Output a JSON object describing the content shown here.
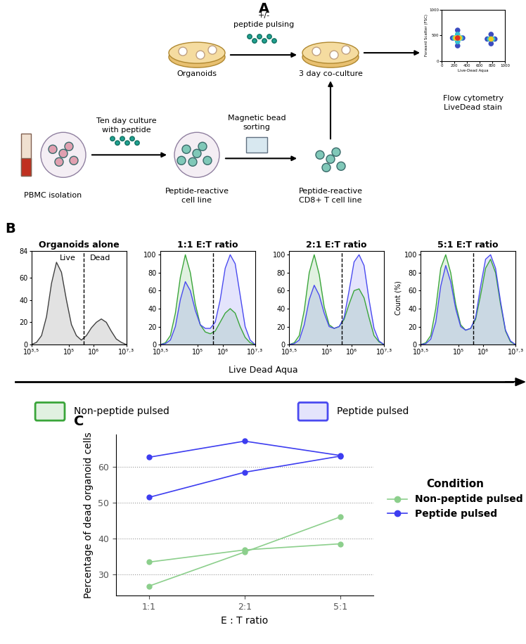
{
  "panel_labels": [
    "A",
    "B",
    "C"
  ],
  "diagram": {
    "texts": {
      "pulsing": [
        "+/-",
        "peptide pulsing"
      ],
      "organoids": [
        "Organoids"
      ],
      "coculture": [
        "3 day co-culture"
      ],
      "flow": [
        "Flow cytometry",
        "LiveDead stain"
      ],
      "culture": [
        "Ten day culture",
        "with peptide"
      ],
      "sorting": [
        "Magnetic bead",
        "sorting"
      ],
      "pbmc": [
        "PBMC isolation"
      ],
      "cell_line": [
        "Peptide-reactive",
        "cell line"
      ],
      "cd8_line": [
        "Peptide-reactive",
        "CD8+ T cell line"
      ]
    }
  },
  "panel_b": {
    "axis_title": "Live Dead Aqua",
    "legend": [
      {
        "name": "Non-peptide pulsed",
        "color": "#3aa53a"
      },
      {
        "name": "Peptide pulsed",
        "color": "#4a4af0"
      }
    ]
  },
  "chart_data": [
    {
      "type": "scatter",
      "x_label": "Live-Dead Aqua",
      "y_label": "Forward Scatter (FSC)",
      "xlim": [
        0,
        1000
      ],
      "ylim": [
        0,
        1000
      ],
      "xticks": [
        0,
        200,
        400,
        600,
        800,
        1000
      ],
      "yticks": [
        0,
        500,
        1000
      ],
      "series": [
        {
          "x": [
            250,
            170,
            330,
            250,
            250,
            200,
            300,
            250,
            250,
            220,
            280,
            250
          ],
          "y": [
            450,
            450,
            450,
            300,
            600,
            450,
            450,
            380,
            520,
            450,
            450,
            450
          ],
          "colors": [
            "#3b4cc0",
            "#3b4cc0",
            "#3b4cc0",
            "#3b4cc0",
            "#3b4cc0",
            "#35c0d0",
            "#35c0d0",
            "#35c0d0",
            "#35c0d0",
            "#f0d020",
            "#f0d020",
            "#e03020"
          ]
        },
        {
          "x": [
            780,
            720,
            840,
            780,
            780,
            755,
            805,
            780
          ],
          "y": [
            430,
            430,
            430,
            340,
            520,
            430,
            430,
            430
          ],
          "colors": [
            "#3b4cc0",
            "#3b4cc0",
            "#3b4cc0",
            "#3b4cc0",
            "#3b4cc0",
            "#35c0d0",
            "#35c0d0",
            "#f0d020"
          ]
        }
      ]
    },
    {
      "type": "area",
      "title": "Organoids alone",
      "log": "x",
      "x": [
        3162,
        5012,
        7943,
        12589,
        19953,
        31623,
        50119,
        79433,
        125893,
        199526,
        316228,
        501187,
        794328,
        1258925,
        1995262,
        3162278,
        5011872,
        7943282,
        12589254,
        19952623
      ],
      "xlim": [
        3162.28,
        19952623.15
      ],
      "xticks": [
        {
          "value": 3162.28,
          "label": "10³·⁵"
        },
        {
          "value": 100000,
          "label": "10⁵"
        },
        {
          "value": 1000000,
          "label": "10⁶"
        },
        {
          "value": 19952623.15,
          "label": "10⁷·³"
        }
      ],
      "ylim": [
        0,
        84
      ],
      "yticks": [
        0,
        20,
        40,
        60,
        84
      ],
      "gate": 398107,
      "annotations": [
        "Live",
        "Dead"
      ],
      "series": [
        {
          "color": "#404040",
          "values": [
            0,
            2,
            8,
            25,
            55,
            74,
            65,
            40,
            18,
            8,
            4,
            8,
            15,
            20,
            23,
            20,
            12,
            5,
            2,
            0
          ]
        }
      ]
    },
    {
      "type": "area",
      "title": "1:1 E:T ratio",
      "log": "x",
      "x": [
        3162,
        5012,
        7943,
        12589,
        19953,
        31623,
        50119,
        79433,
        125893,
        199526,
        316228,
        501187,
        794328,
        1258925,
        1995262,
        3162278,
        5011872,
        7943282,
        12589254,
        19952623
      ],
      "xlim": [
        3162.28,
        19952623.15
      ],
      "xticks": [
        {
          "value": 3162.28,
          "label": "10³·⁵"
        },
        {
          "value": 100000,
          "label": "10⁵"
        },
        {
          "value": 1000000,
          "label": "10⁶"
        },
        {
          "value": 19952623.15,
          "label": "10⁷·³"
        }
      ],
      "ylim": [
        0,
        104
      ],
      "yticks": [
        0,
        20,
        40,
        60,
        80,
        100
      ],
      "gate": 398107,
      "series": [
        {
          "color": "#3aa53a",
          "values": [
            0,
            2,
            10,
            35,
            75,
            100,
            80,
            45,
            22,
            14,
            12,
            15,
            25,
            35,
            40,
            35,
            20,
            8,
            2,
            0
          ]
        },
        {
          "color": "#4a4af0",
          "values": [
            0,
            1,
            5,
            20,
            50,
            70,
            60,
            38,
            22,
            18,
            18,
            25,
            50,
            85,
            100,
            90,
            55,
            20,
            5,
            0
          ]
        }
      ]
    },
    {
      "type": "area",
      "title": "2:1 E:T ratio",
      "log": "x",
      "x": [
        3162,
        5012,
        7943,
        12589,
        19953,
        31623,
        50119,
        79433,
        125893,
        199526,
        316228,
        501187,
        794328,
        1258925,
        1995262,
        3162278,
        5011872,
        7943282,
        12589254,
        19952623
      ],
      "xlim": [
        3162.28,
        19952623.15
      ],
      "xticks": [
        {
          "value": 3162.28,
          "label": "10³·⁵"
        },
        {
          "value": 100000,
          "label": "10⁵"
        },
        {
          "value": 1000000,
          "label": "10⁶"
        },
        {
          "value": 19952623.15,
          "label": "10⁷·³"
        }
      ],
      "ylim": [
        0,
        104
      ],
      "yticks": [
        0,
        20,
        40,
        60,
        80,
        100
      ],
      "gate": 398107,
      "series": [
        {
          "color": "#3aa53a",
          "values": [
            0,
            2,
            10,
            38,
            80,
            100,
            78,
            42,
            22,
            18,
            20,
            28,
            45,
            60,
            62,
            52,
            30,
            10,
            3,
            0
          ]
        },
        {
          "color": "#4a4af0",
          "values": [
            0,
            1,
            5,
            22,
            50,
            66,
            55,
            35,
            20,
            18,
            20,
            30,
            60,
            92,
            100,
            88,
            50,
            18,
            4,
            0
          ]
        }
      ]
    },
    {
      "type": "area",
      "title": "5:1 E:T ratio",
      "log": "x",
      "y_label": "Count (%)",
      "x": [
        3162,
        5012,
        7943,
        12589,
        19953,
        31623,
        50119,
        79433,
        125893,
        199526,
        316228,
        501187,
        794328,
        1258925,
        1995262,
        3162278,
        5011872,
        7943282,
        12589254,
        19952623
      ],
      "xlim": [
        3162.28,
        19952623.15
      ],
      "xticks": [
        {
          "value": 3162.28,
          "label": "10³·⁵"
        },
        {
          "value": 100000,
          "label": "10⁵"
        },
        {
          "value": 1000000,
          "label": "10⁶"
        },
        {
          "value": 19952623.15,
          "label": "10⁷·³"
        }
      ],
      "ylim": [
        0,
        104
      ],
      "yticks": [
        0,
        20,
        40,
        60,
        80,
        100
      ],
      "gate": 398107,
      "series": [
        {
          "color": "#3aa53a",
          "values": [
            0,
            2,
            10,
            40,
            85,
            100,
            80,
            45,
            22,
            16,
            18,
            28,
            55,
            85,
            95,
            80,
            45,
            15,
            3,
            0
          ]
        },
        {
          "color": "#4a4af0",
          "values": [
            0,
            1,
            6,
            25,
            65,
            88,
            70,
            40,
            20,
            16,
            18,
            30,
            65,
            95,
            100,
            85,
            48,
            16,
            4,
            0
          ]
        }
      ]
    },
    {
      "type": "line",
      "x_label": "E : T ratio",
      "y_label": "Percentage of dead organoid cells",
      "categories": [
        "1:1",
        "2:1",
        "5:1"
      ],
      "ylim": [
        24,
        69
      ],
      "yticks": [
        30,
        40,
        50,
        60
      ],
      "grid": true,
      "legend": "center left",
      "legend_title": "Condition",
      "marker": "o",
      "series": [
        {
          "name": "Non-peptide pulsed",
          "color": "#8ccf8c",
          "replicates": [
            [
              33.4,
              36.8,
              38.5
            ],
            [
              26.7,
              36.2,
              46.0
            ]
          ]
        },
        {
          "name": "Peptide pulsed",
          "color": "#3d3df0",
          "replicates": [
            [
              62.7,
              67.2,
              63.2
            ],
            [
              51.5,
              58.5,
              63.0
            ]
          ]
        }
      ]
    }
  ]
}
